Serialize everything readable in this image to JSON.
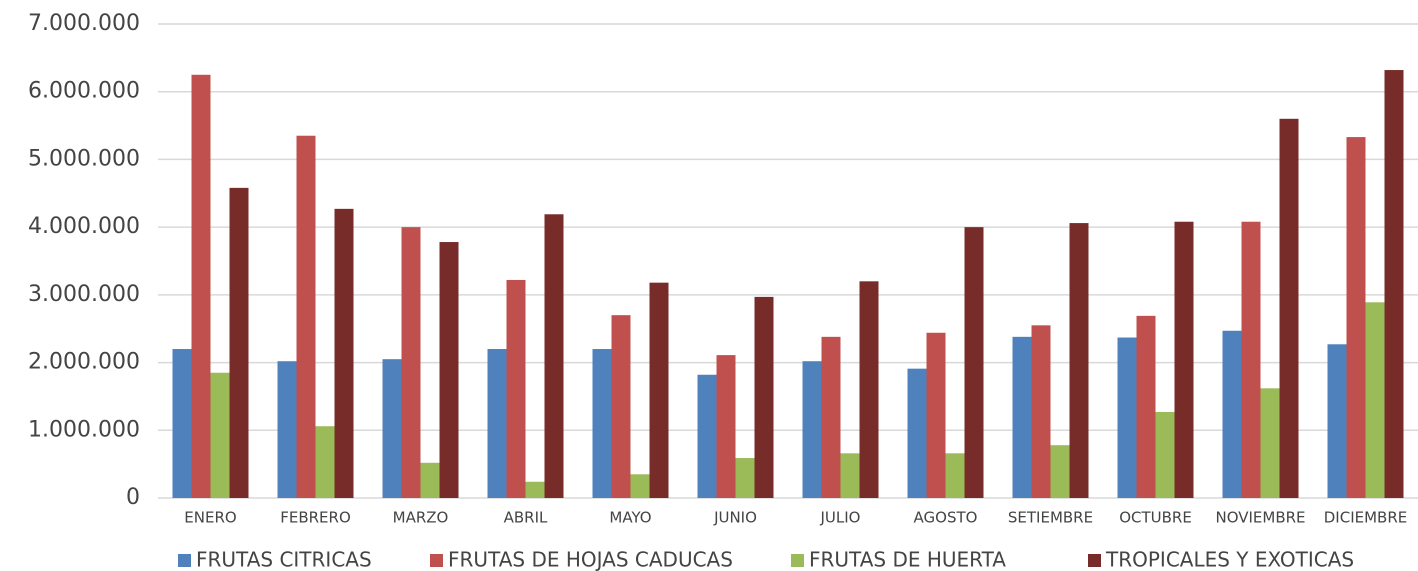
{
  "chart_data": {
    "type": "bar",
    "categories": [
      "ENERO",
      "FEBRERO",
      "MARZO",
      "ABRIL",
      "MAYO",
      "JUNIO",
      "JULIO",
      "AGOSTO",
      "SETIEMBRE",
      "OCTUBRE",
      "NOVIEMBRE",
      "DICIEMBRE"
    ],
    "series": [
      {
        "name": "FRUTAS CITRICAS",
        "color": "#4f81bd",
        "values": [
          2200000,
          2020000,
          2050000,
          2200000,
          2200000,
          1820000,
          2020000,
          1910000,
          2380000,
          2370000,
          2470000,
          2270000
        ]
      },
      {
        "name": "FRUTAS DE HOJAS CADUCAS",
        "color": "#c0504d",
        "values": [
          6250000,
          5350000,
          4000000,
          3220000,
          2700000,
          2110000,
          2380000,
          2440000,
          2550000,
          2690000,
          4080000,
          5330000
        ]
      },
      {
        "name": "FRUTAS DE HUERTA",
        "color": "#9bbb59",
        "values": [
          1850000,
          1060000,
          520000,
          240000,
          350000,
          590000,
          660000,
          660000,
          780000,
          1270000,
          1620000,
          2890000
        ]
      },
      {
        "name": "TROPICALES Y EXOTICAS",
        "color": "#772c2a",
        "values": [
          4580000,
          4270000,
          3780000,
          4190000,
          3180000,
          2970000,
          3200000,
          4000000,
          4060000,
          4080000,
          5600000,
          6320000
        ]
      }
    ],
    "ylim": [
      0,
      7000000
    ],
    "yticks": [
      0,
      {
        "value": 1000000,
        "label": "1.000.000"
      },
      {
        "value": 2000000,
        "label": "2.000.000"
      },
      {
        "value": 3000000,
        "label": "3.000.000"
      },
      {
        "value": 4000000,
        "label": "4.000.000"
      },
      {
        "value": 5000000,
        "label": "5.000.000"
      },
      {
        "value": 6000000,
        "label": "6.000.000"
      },
      {
        "value": 7000000,
        "label": "7.000.000"
      }
    ],
    "grid": true,
    "legend": "bottom"
  }
}
